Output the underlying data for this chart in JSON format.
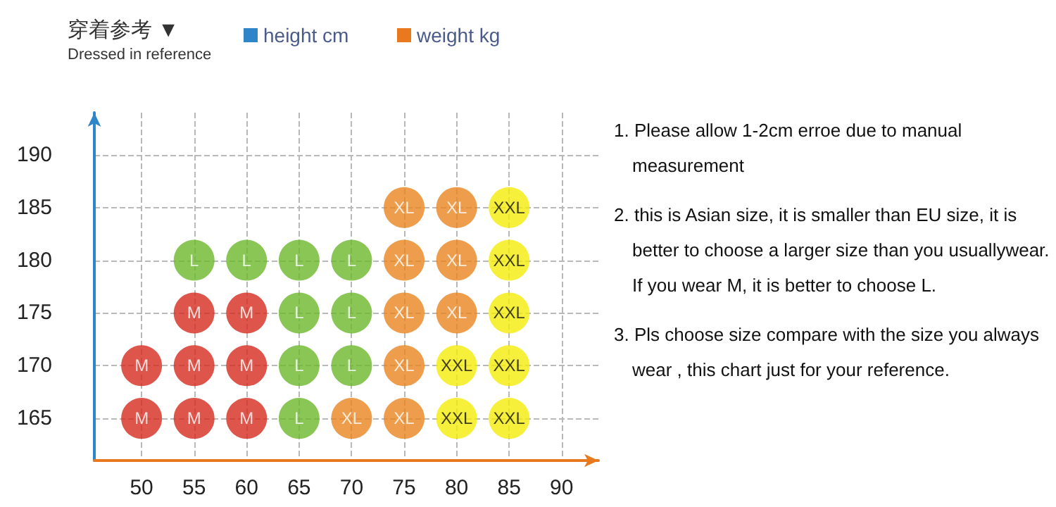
{
  "chart_data": {
    "type": "scatter",
    "title": "穿着参考 ▼",
    "subtitle": "Dressed in reference",
    "ylabel": "height cm",
    "xlabel": "weight kg",
    "xlim": [
      45.5,
      93.5
    ],
    "xticks": [
      50,
      55,
      60,
      65,
      70,
      75,
      80,
      85,
      90
    ],
    "ylim": [
      161,
      194
    ],
    "yticks": [
      165,
      170,
      175,
      180,
      185,
      190
    ],
    "grid": true,
    "legend": false,
    "marker": "circle",
    "data_labels": false,
    "series": [
      {
        "name": "M",
        "color": "#d42a1e",
        "x": [
          50,
          55,
          60,
          50,
          55,
          60,
          55,
          60
        ],
        "values": [
          165,
          165,
          165,
          170,
          170,
          170,
          175,
          175
        ]
      },
      {
        "name": "L",
        "color": "#6cb82c",
        "x": [
          65,
          65,
          70,
          65,
          70,
          55,
          60,
          65,
          70
        ],
        "values": [
          165,
          170,
          170,
          175,
          175,
          180,
          180,
          180,
          180
        ]
      },
      {
        "name": "XL",
        "color": "#e8841e",
        "x": [
          70,
          75,
          75,
          75,
          80,
          75,
          80,
          75,
          80
        ],
        "values": [
          165,
          165,
          170,
          175,
          175,
          180,
          180,
          185,
          185
        ]
      },
      {
        "name": "XXL",
        "color": "#f5ec0a",
        "x": [
          80,
          85,
          80,
          85,
          85,
          85,
          85
        ],
        "values": [
          165,
          165,
          170,
          170,
          175,
          180,
          185
        ]
      }
    ],
    "annotations": [
      "1. Please allow 1-2cm erroe due to manual measurement",
      "2. this is Asian size, it is smaller than EU size, it is better to choose a larger size than you usuallywear. If you wear M, it is better to choose L.",
      "3. Pls choose size compare with the size you always wear , this chart just for your reference."
    ]
  }
}
